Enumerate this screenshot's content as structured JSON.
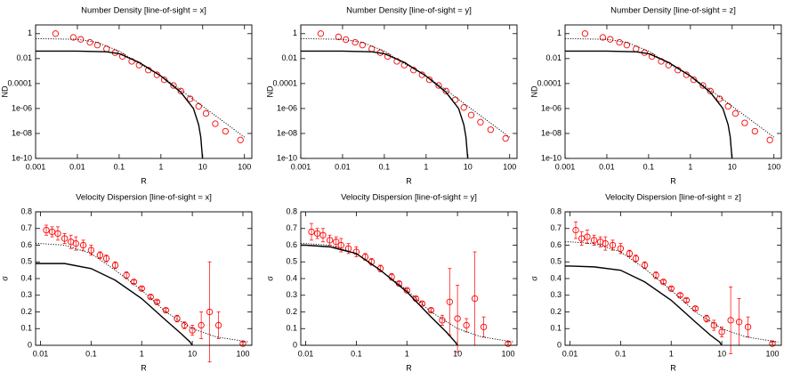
{
  "chart_data": [
    {
      "type": "scatter",
      "title": "Number Density [line-of-sight = x]",
      "xlabel": "R",
      "ylabel": "ND",
      "log_x": true,
      "log_y": true,
      "xlim": [
        0.001,
        150
      ],
      "ylim": [
        1e-10,
        5
      ],
      "xticks": [
        0.001,
        0.01,
        0.1,
        1,
        10,
        100
      ],
      "yticks": [
        1,
        0.01,
        0.0001,
        {
          "value": 1e-06,
          "label": "1e-06"
        },
        {
          "value": 1e-08,
          "label": "1e-08"
        },
        {
          "value": 1e-10,
          "label": "1e-10"
        }
      ],
      "series": [
        {
          "style": "points",
          "color": "#ff0000",
          "x": [
            0.003,
            0.008,
            0.012,
            0.02,
            0.03,
            0.05,
            0.08,
            0.12,
            0.2,
            0.3,
            0.5,
            0.8,
            1.2,
            2,
            3,
            5,
            8,
            12,
            20,
            35,
            80
          ],
          "values": [
            1,
            0.5,
            0.35,
            0.2,
            0.12,
            0.06,
            0.03,
            0.015,
            0.006,
            0.003,
            0.0012,
            0.0005,
            0.0002,
            7e-05,
            2.5e-05,
            6e-06,
            1.5e-06,
            4e-07,
            6e-08,
            1.5e-08,
            3e-09
          ]
        },
        {
          "style": "dotted",
          "color": "#000000",
          "x": [
            0.001,
            0.01,
            0.03,
            0.1,
            0.3,
            1,
            3,
            10,
            30,
            100
          ],
          "values": [
            0.4,
            0.35,
            0.2,
            0.04,
            0.004,
            0.0004,
            3e-05,
            1.5e-06,
            1e-07,
            5e-09
          ]
        },
        {
          "style": "solid",
          "color": "#000000",
          "x": [
            0.001,
            0.01,
            0.05,
            0.1,
            0.3,
            1,
            3,
            6,
            8,
            9,
            9.9
          ],
          "values": [
            0.04,
            0.04,
            0.035,
            0.025,
            0.005,
            0.0004,
            2e-05,
            1e-06,
            5e-08,
            5e-09,
            1e-10
          ]
        }
      ]
    },
    {
      "type": "scatter",
      "title": "Number Density [line-of-sight = y]",
      "xlabel": "R",
      "ylabel": "ND",
      "log_x": true,
      "log_y": true,
      "xlim": [
        0.001,
        150
      ],
      "ylim": [
        1e-10,
        5
      ],
      "xticks": [
        0.001,
        0.01,
        0.1,
        1,
        10,
        100
      ],
      "yticks": [
        1,
        0.01,
        0.0001,
        {
          "value": 1e-06,
          "label": "1e-06"
        },
        {
          "value": 1e-08,
          "label": "1e-08"
        },
        {
          "value": 1e-10,
          "label": "1e-10"
        }
      ],
      "series": [
        {
          "style": "points",
          "color": "#ff0000",
          "x": [
            0.003,
            0.008,
            0.012,
            0.02,
            0.03,
            0.05,
            0.08,
            0.12,
            0.2,
            0.3,
            0.5,
            0.8,
            1.2,
            2,
            3,
            5,
            8,
            12,
            20,
            35,
            80
          ],
          "values": [
            1,
            0.55,
            0.33,
            0.2,
            0.12,
            0.06,
            0.03,
            0.015,
            0.006,
            0.003,
            0.0012,
            0.0005,
            0.0002,
            7e-05,
            2.5e-05,
            5e-06,
            1.2e-06,
            3e-07,
            8e-08,
            2e-08,
            4e-09
          ]
        },
        {
          "style": "dotted",
          "color": "#000000",
          "x": [
            0.001,
            0.01,
            0.03,
            0.1,
            0.3,
            1,
            3,
            10,
            30,
            100
          ],
          "values": [
            0.4,
            0.35,
            0.2,
            0.04,
            0.004,
            0.0004,
            3e-05,
            1.5e-06,
            1e-07,
            5e-09
          ]
        },
        {
          "style": "solid",
          "color": "#000000",
          "x": [
            0.001,
            0.01,
            0.05,
            0.1,
            0.3,
            1,
            3,
            6,
            8,
            9,
            9.9
          ],
          "values": [
            0.04,
            0.04,
            0.035,
            0.025,
            0.005,
            0.0004,
            2e-05,
            1e-06,
            5e-08,
            5e-09,
            1e-10
          ]
        }
      ]
    },
    {
      "type": "scatter",
      "title": "Number Density [line-of-sight = z]",
      "xlabel": "R",
      "ylabel": "ND",
      "log_x": true,
      "log_y": true,
      "xlim": [
        0.001,
        150
      ],
      "ylim": [
        1e-10,
        5
      ],
      "xticks": [
        0.001,
        0.01,
        0.1,
        1,
        10,
        100
      ],
      "yticks": [
        1,
        0.01,
        0.0001,
        {
          "value": 1e-06,
          "label": "1e-06"
        },
        {
          "value": 1e-08,
          "label": "1e-08"
        },
        {
          "value": 1e-10,
          "label": "1e-10"
        }
      ],
      "series": [
        {
          "style": "points",
          "color": "#ff0000",
          "x": [
            0.003,
            0.008,
            0.012,
            0.02,
            0.03,
            0.05,
            0.08,
            0.12,
            0.2,
            0.3,
            0.5,
            0.8,
            1.2,
            2,
            3,
            5,
            8,
            12,
            20,
            35,
            80
          ],
          "values": [
            1,
            0.5,
            0.35,
            0.2,
            0.12,
            0.06,
            0.03,
            0.015,
            0.006,
            0.003,
            0.0012,
            0.0005,
            0.0002,
            7e-05,
            2.5e-05,
            6e-06,
            1.5e-06,
            4e-07,
            7e-08,
            1.5e-08,
            3e-09
          ]
        },
        {
          "style": "dotted",
          "color": "#000000",
          "x": [
            0.001,
            0.01,
            0.03,
            0.1,
            0.3,
            1,
            3,
            10,
            30,
            100
          ],
          "values": [
            0.4,
            0.35,
            0.2,
            0.04,
            0.004,
            0.0004,
            3e-05,
            1.5e-06,
            1e-07,
            5e-09
          ]
        },
        {
          "style": "solid",
          "color": "#000000",
          "x": [
            0.001,
            0.01,
            0.05,
            0.1,
            0.3,
            1,
            3,
            6,
            8,
            9,
            9.9
          ],
          "values": [
            0.04,
            0.04,
            0.035,
            0.025,
            0.005,
            0.0004,
            2e-05,
            1e-06,
            5e-08,
            5e-09,
            1e-10
          ]
        }
      ]
    },
    {
      "type": "scatter",
      "title": "Velocity Dispersion [line-of-sight = x]",
      "xlabel": "R",
      "ylabel": "σ",
      "log_x": true,
      "log_y": false,
      "xlim": [
        0.008,
        150
      ],
      "ylim": [
        0,
        0.8
      ],
      "xticks": [
        0.01,
        0.1,
        1,
        10,
        100
      ],
      "yticks": [
        0,
        0.1,
        0.2,
        0.3,
        0.4,
        0.5,
        0.6,
        0.7,
        0.8
      ],
      "series": [
        {
          "style": "points",
          "color": "#ff0000",
          "x": [
            0.013,
            0.017,
            0.022,
            0.03,
            0.04,
            0.05,
            0.07,
            0.1,
            0.15,
            0.2,
            0.3,
            0.5,
            0.7,
            1,
            1.5,
            2,
            3,
            5,
            7,
            10,
            15,
            22,
            33,
            100
          ],
          "values": [
            0.69,
            0.68,
            0.67,
            0.64,
            0.62,
            0.61,
            0.6,
            0.57,
            0.54,
            0.52,
            0.48,
            0.42,
            0.38,
            0.34,
            0.29,
            0.26,
            0.21,
            0.16,
            0.12,
            0.09,
            0.12,
            0.2,
            0.12,
            0.01
          ],
          "errors": [
            0.03,
            0.03,
            0.04,
            0.03,
            0.04,
            0.04,
            0.03,
            0.03,
            0.02,
            0.02,
            0.02,
            0.02,
            0.01,
            0.01,
            0.01,
            0.01,
            0.01,
            0.02,
            0.02,
            0.03,
            0.08,
            0.3,
            0.08,
            0.01
          ]
        },
        {
          "style": "dotted",
          "color": "#000000",
          "x": [
            0.008,
            0.01,
            0.03,
            0.1,
            0.3,
            1,
            3,
            10,
            30,
            130
          ],
          "values": [
            0.61,
            0.61,
            0.6,
            0.55,
            0.45,
            0.33,
            0.2,
            0.1,
            0.05,
            0.02
          ]
        },
        {
          "style": "solid",
          "color": "#000000",
          "x": [
            0.008,
            0.01,
            0.03,
            0.1,
            0.3,
            1,
            3,
            6,
            9,
            10
          ],
          "values": [
            0.49,
            0.49,
            0.49,
            0.46,
            0.39,
            0.28,
            0.15,
            0.07,
            0.02,
            0
          ]
        }
      ]
    },
    {
      "type": "scatter",
      "title": "Velocity Dispersion [line-of-sight = y]",
      "xlabel": "R",
      "ylabel": "σ",
      "log_x": true,
      "log_y": false,
      "xlim": [
        0.008,
        150
      ],
      "ylim": [
        0,
        0.8
      ],
      "xticks": [
        0.01,
        0.1,
        1,
        10,
        100
      ],
      "yticks": [
        0,
        0.1,
        0.2,
        0.3,
        0.4,
        0.5,
        0.6,
        0.7,
        0.8
      ],
      "series": [
        {
          "style": "points",
          "color": "#ff0000",
          "x": [
            0.013,
            0.017,
            0.022,
            0.03,
            0.04,
            0.05,
            0.07,
            0.1,
            0.15,
            0.2,
            0.3,
            0.5,
            0.7,
            1,
            1.5,
            2,
            3,
            5,
            7,
            10,
            15,
            22,
            33,
            100
          ],
          "values": [
            0.68,
            0.67,
            0.66,
            0.63,
            0.62,
            0.6,
            0.58,
            0.56,
            0.53,
            0.5,
            0.46,
            0.41,
            0.37,
            0.33,
            0.28,
            0.25,
            0.21,
            0.15,
            0.26,
            0.16,
            0.12,
            0.28,
            0.11,
            0.01
          ],
          "errors": [
            0.05,
            0.03,
            0.04,
            0.03,
            0.03,
            0.04,
            0.03,
            0.03,
            0.02,
            0.02,
            0.02,
            0.02,
            0.01,
            0.01,
            0.01,
            0.01,
            0.01,
            0.03,
            0.2,
            0.2,
            0.04,
            0.28,
            0.06,
            0.01
          ]
        },
        {
          "style": "dotted",
          "color": "#000000",
          "x": [
            0.008,
            0.01,
            0.03,
            0.1,
            0.3,
            1,
            3,
            10,
            30,
            130
          ],
          "values": [
            0.61,
            0.61,
            0.6,
            0.55,
            0.45,
            0.33,
            0.2,
            0.1,
            0.05,
            0.02
          ]
        },
        {
          "style": "solid",
          "color": "#000000",
          "x": [
            0.008,
            0.01,
            0.03,
            0.1,
            0.3,
            1,
            3,
            6,
            9,
            10
          ],
          "values": [
            0.6,
            0.6,
            0.59,
            0.55,
            0.45,
            0.32,
            0.17,
            0.08,
            0.02,
            0
          ]
        }
      ]
    },
    {
      "type": "scatter",
      "title": "Velocity Dispersion [line-of-sight = z]",
      "xlabel": "R",
      "ylabel": "σ",
      "log_x": true,
      "log_y": false,
      "xlim": [
        0.008,
        150
      ],
      "ylim": [
        0,
        0.8
      ],
      "xticks": [
        0.01,
        0.1,
        1,
        10,
        100
      ],
      "yticks": [
        0,
        0.1,
        0.2,
        0.3,
        0.4,
        0.5,
        0.6,
        0.7,
        0.8
      ],
      "series": [
        {
          "style": "points",
          "color": "#ff0000",
          "x": [
            0.013,
            0.017,
            0.022,
            0.03,
            0.04,
            0.05,
            0.07,
            0.1,
            0.15,
            0.2,
            0.3,
            0.5,
            0.7,
            1,
            1.5,
            2,
            3,
            5,
            7,
            10,
            15,
            22,
            33,
            100
          ],
          "values": [
            0.69,
            0.64,
            0.65,
            0.63,
            0.62,
            0.61,
            0.6,
            0.58,
            0.55,
            0.52,
            0.48,
            0.42,
            0.38,
            0.34,
            0.3,
            0.27,
            0.22,
            0.16,
            0.12,
            0.08,
            0.15,
            0.14,
            0.11,
            0.01
          ],
          "errors": [
            0.05,
            0.04,
            0.04,
            0.03,
            0.03,
            0.04,
            0.03,
            0.03,
            0.02,
            0.02,
            0.02,
            0.02,
            0.01,
            0.01,
            0.01,
            0.01,
            0.01,
            0.02,
            0.03,
            0.03,
            0.2,
            0.14,
            0.06,
            0.01
          ]
        },
        {
          "style": "dotted",
          "color": "#000000",
          "x": [
            0.008,
            0.01,
            0.03,
            0.1,
            0.3,
            1,
            3,
            10,
            30,
            130
          ],
          "values": [
            0.62,
            0.62,
            0.61,
            0.56,
            0.46,
            0.33,
            0.2,
            0.1,
            0.05,
            0.02
          ]
        },
        {
          "style": "solid",
          "color": "#000000",
          "x": [
            0.008,
            0.01,
            0.03,
            0.1,
            0.3,
            1,
            3,
            6,
            9,
            10
          ],
          "values": [
            0.475,
            0.475,
            0.47,
            0.45,
            0.38,
            0.27,
            0.14,
            0.06,
            0.02,
            0
          ]
        }
      ]
    }
  ]
}
